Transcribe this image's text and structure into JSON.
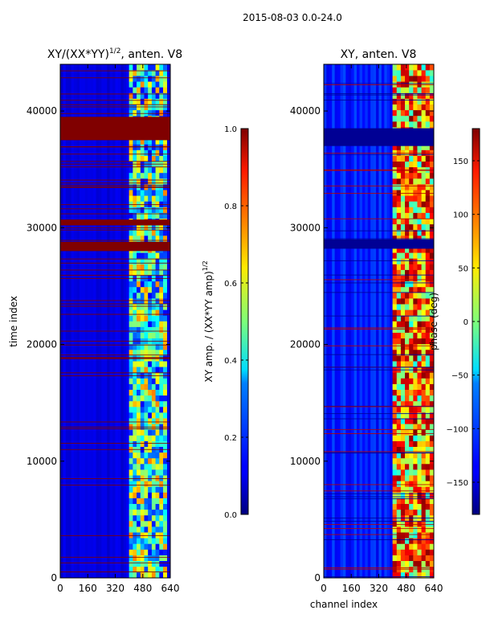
{
  "figure": {
    "suptitle": "2015-08-03 0.0-24.0"
  },
  "chart_data": [
    {
      "type": "heatmap",
      "title": "XY/(XX*YY)",
      "title_superscript": "1/2",
      "title_suffix": ", anten. V8",
      "xlabel": "",
      "ylabel": "time index",
      "xlim": [
        0,
        640
      ],
      "ylim": [
        0,
        44000
      ],
      "x_ticks": [
        0,
        160,
        320,
        480,
        640
      ],
      "y_ticks": [
        0,
        10000,
        20000,
        30000,
        40000
      ],
      "y_tick_labels": [
        "0",
        "10000",
        "20000",
        "30000",
        "40000"
      ],
      "colormap": "jet",
      "colorbar": {
        "label": "XY amp. / (XX*YY amp)",
        "label_superscript": "1/2",
        "range": [
          0.0,
          1.0
        ],
        "ticks": [
          0.0,
          0.2,
          0.4,
          0.6,
          0.8,
          1.0
        ],
        "tick_labels": [
          "0.0",
          "0.2",
          "0.4",
          "0.6",
          "0.8",
          "1.0"
        ]
      },
      "background_value": 0.1,
      "active_channel_band": [
        400,
        620
      ],
      "saturated_time_bands": [
        [
          37500,
          39500
        ],
        [
          28000,
          28800
        ],
        [
          30200,
          30700
        ]
      ]
    },
    {
      "type": "heatmap",
      "title": "XY, anten. V8",
      "xlabel": "channel index",
      "ylabel": "",
      "xlim": [
        0,
        640
      ],
      "ylim": [
        0,
        44000
      ],
      "x_ticks": [
        0,
        160,
        320,
        480,
        640
      ],
      "y_ticks": [
        0,
        10000,
        20000,
        30000,
        40000
      ],
      "y_tick_labels": [
        "0",
        "10000",
        "20000",
        "30000",
        "40000"
      ],
      "colormap": "jet",
      "colorbar": {
        "label": "phase (deg)",
        "range": [
          -180,
          180
        ],
        "ticks": [
          -150,
          -100,
          -50,
          0,
          50,
          100,
          150
        ],
        "tick_labels": [
          "−150",
          "−100",
          "−50",
          "0",
          "50",
          "100",
          "150"
        ]
      },
      "background_value": -130,
      "active_channel_band": [
        400,
        640
      ],
      "saturated_time_bands": [
        [
          37000,
          38500
        ],
        [
          28200,
          29000
        ]
      ]
    }
  ]
}
